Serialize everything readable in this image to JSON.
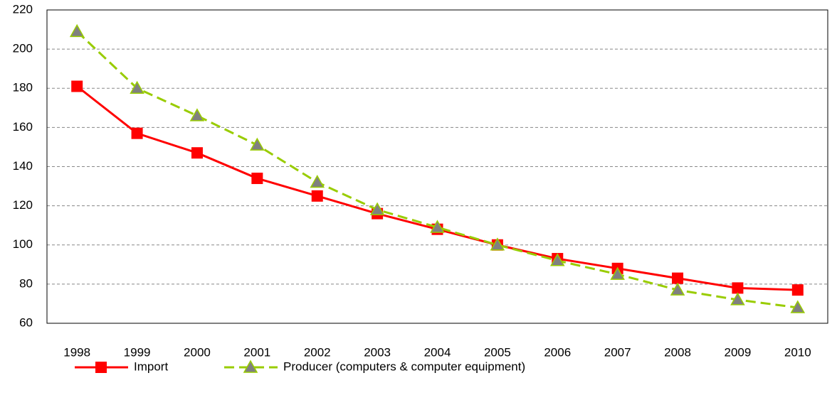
{
  "chart_data": {
    "type": "line",
    "categories": [
      "1998",
      "1999",
      "2000",
      "2001",
      "2002",
      "2003",
      "2004",
      "2005",
      "2006",
      "2007",
      "2008",
      "2009",
      "2010"
    ],
    "series": [
      {
        "name": "Import",
        "color": "#ff0000",
        "marker": "square",
        "dashed": false,
        "values": [
          181,
          157,
          147,
          134,
          125,
          116,
          108,
          100,
          93,
          88,
          83,
          78,
          77
        ]
      },
      {
        "name": "Producer (computers & computer equipment)",
        "color": "#99cc00",
        "marker": "triangle",
        "dashed": true,
        "values": [
          209,
          180,
          166,
          151,
          132,
          118,
          109,
          100,
          92,
          85,
          77,
          72,
          68
        ]
      }
    ],
    "ylim": [
      60,
      220
    ],
    "yticks": [
      60,
      80,
      100,
      120,
      140,
      160,
      180,
      200,
      220
    ],
    "grid": true,
    "legend": "bottom"
  }
}
